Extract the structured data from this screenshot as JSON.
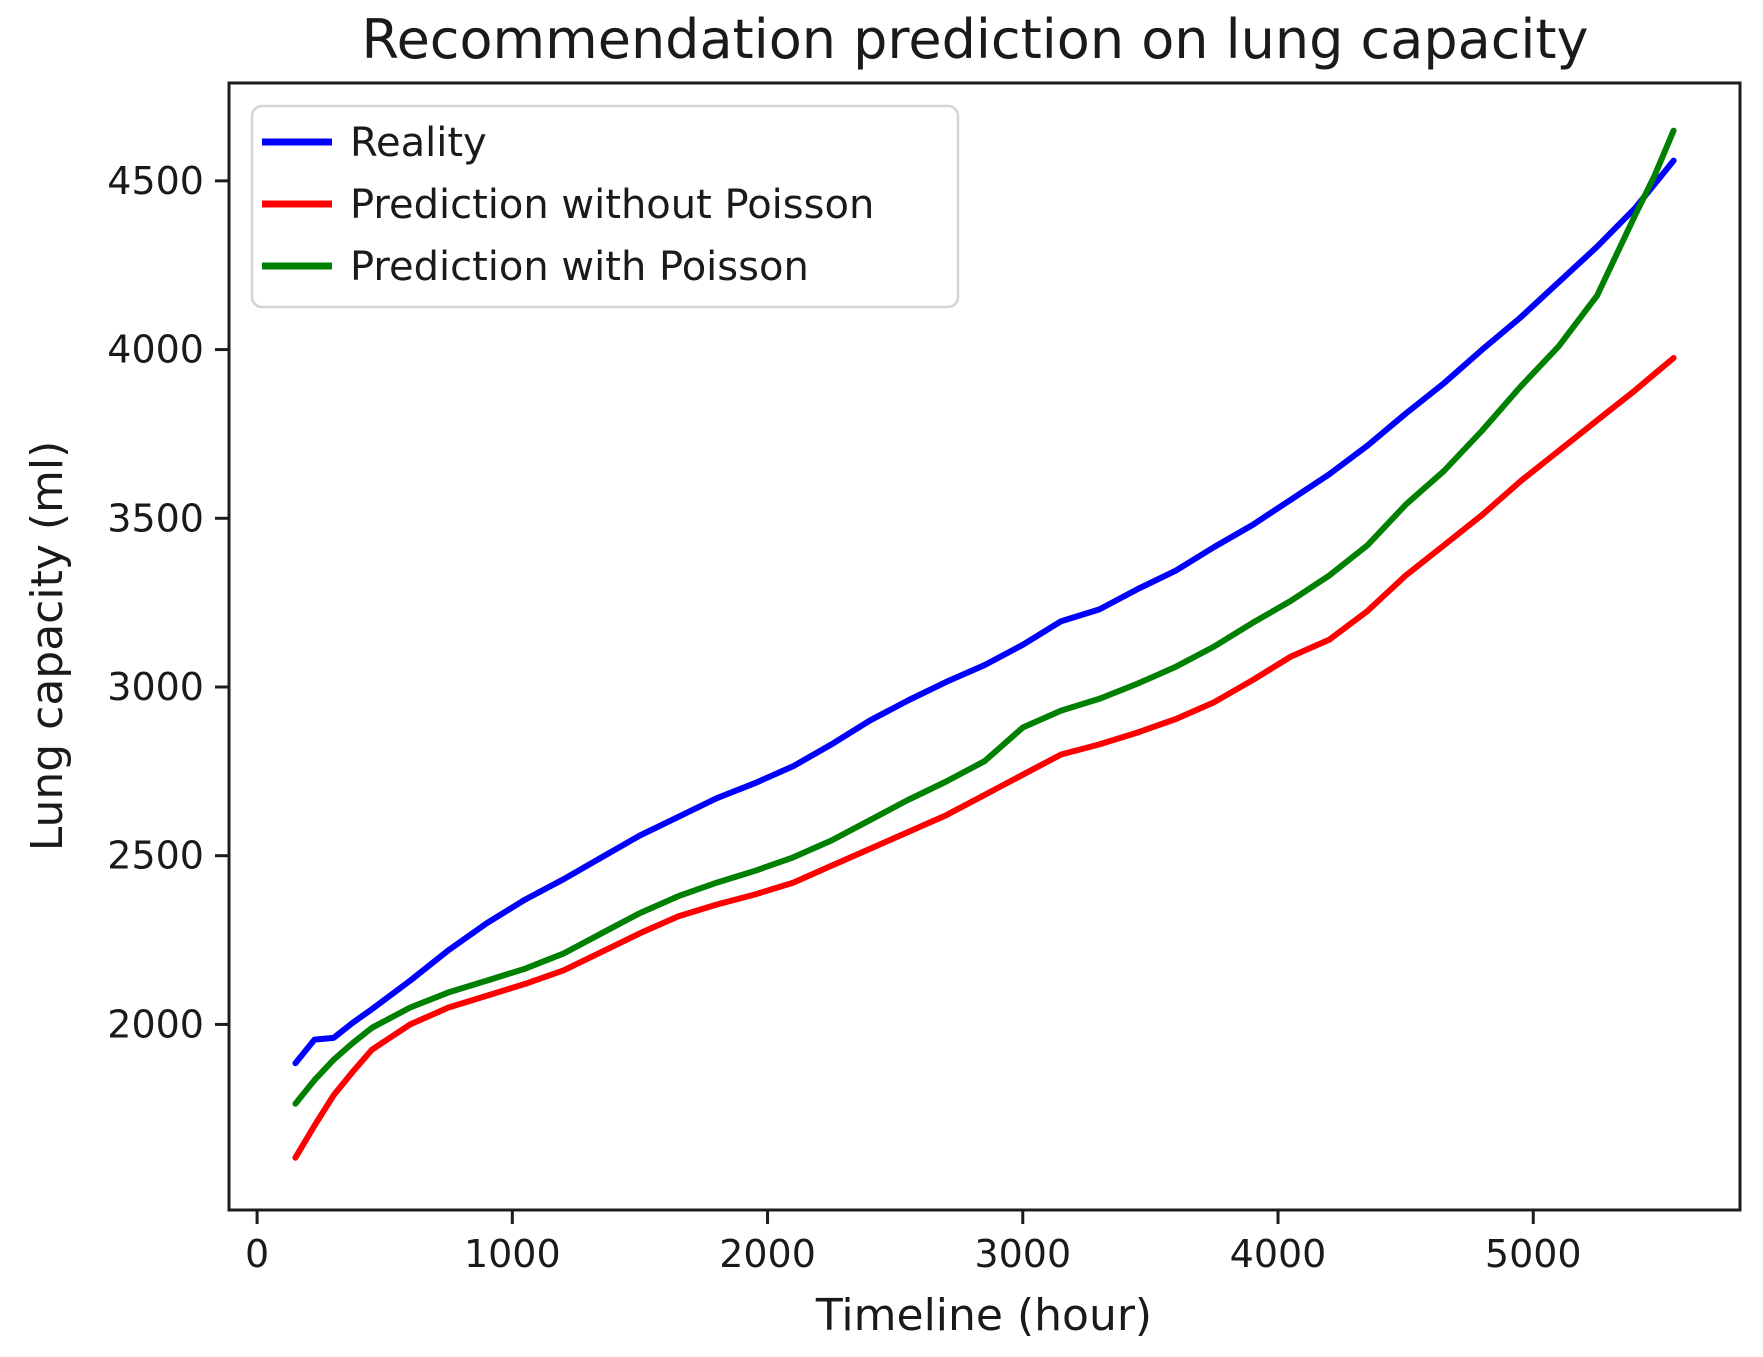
{
  "chart_data": {
    "type": "line",
    "title": "Recommendation prediction on lung capacity",
    "xlabel": "Timeline (hour)",
    "ylabel": "Lung capacity (ml)",
    "xlim": [
      -110,
      5810
    ],
    "ylim": [
      1450,
      4790
    ],
    "xticks": [
      0,
      1000,
      2000,
      3000,
      4000,
      5000
    ],
    "yticks": [
      2000,
      2500,
      3000,
      3500,
      4000,
      4500
    ],
    "grid": false,
    "legend_position": "upper left",
    "x": [
      150,
      225,
      300,
      375,
      450,
      600,
      750,
      900,
      1050,
      1200,
      1350,
      1500,
      1650,
      1800,
      1950,
      2100,
      2250,
      2400,
      2550,
      2700,
      2850,
      3000,
      3150,
      3300,
      3450,
      3600,
      3750,
      3900,
      4050,
      4200,
      4350,
      4500,
      4650,
      4800,
      4950,
      5100,
      5250,
      5400,
      5475,
      5550
    ],
    "series": [
      {
        "name": "Reality",
        "color": "#0000ff",
        "values": [
          1885,
          1955,
          1960,
          2005,
          2045,
          2130,
          2220,
          2300,
          2370,
          2430,
          2495,
          2560,
          2615,
          2670,
          2715,
          2765,
          2830,
          2900,
          2960,
          3015,
          3065,
          3125,
          3195,
          3230,
          3290,
          3345,
          3415,
          3480,
          3555,
          3630,
          3715,
          3810,
          3900,
          4000,
          4095,
          4200,
          4305,
          4420,
          4490,
          4560
        ]
      },
      {
        "name": "Prediction without Poisson",
        "color": "#ff0000",
        "values": [
          1605,
          1700,
          1790,
          1860,
          1925,
          2000,
          2050,
          2085,
          2120,
          2160,
          2215,
          2270,
          2320,
          2355,
          2385,
          2420,
          2470,
          2520,
          2570,
          2620,
          2680,
          2740,
          2800,
          2830,
          2865,
          2905,
          2955,
          3020,
          3090,
          3140,
          3225,
          3330,
          3420,
          3510,
          3610,
          3700,
          3790,
          3880,
          3928,
          3975
        ]
      },
      {
        "name": "Prediction with Poisson",
        "color": "#008000",
        "values": [
          1765,
          1835,
          1895,
          1945,
          1990,
          2050,
          2095,
          2130,
          2165,
          2210,
          2270,
          2330,
          2380,
          2420,
          2455,
          2495,
          2545,
          2605,
          2665,
          2720,
          2780,
          2880,
          2930,
          2965,
          3010,
          3060,
          3120,
          3190,
          3255,
          3330,
          3420,
          3540,
          3640,
          3760,
          3890,
          4010,
          4160,
          4400,
          4515,
          4649
        ]
      }
    ],
    "colors": {
      "background": "#ffffff",
      "axis": "#1c1c1c",
      "text": "#1a1a1a",
      "legend_border": "#d4d4d4",
      "legend_background": "#ffffff"
    }
  }
}
